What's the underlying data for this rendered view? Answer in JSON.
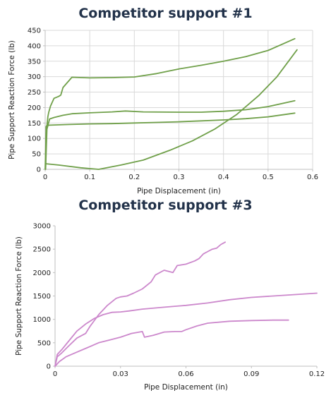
{
  "chart_data": [
    {
      "type": "line",
      "title": "Competitor support #1",
      "xlabel": "Pipe Displacement (in)",
      "ylabel": "Pipe Support Reaction Force (lb)",
      "xlim": [
        0,
        0.6
      ],
      "ylim": [
        0,
        450
      ],
      "xticks": [
        "0",
        "0.1",
        "0.2",
        "0.3",
        "0.4",
        "0.5",
        "0.6"
      ],
      "yticks": [
        "0",
        "50",
        "100",
        "150",
        "200",
        "250",
        "300",
        "350",
        "400",
        "450"
      ],
      "grid": true,
      "color": "#70a04a",
      "series": [
        {
          "x": [
            0,
            0.002,
            0.004,
            0.006,
            0.008,
            0.012,
            0.02,
            0.03,
            0.035,
            0.04,
            0.06,
            0.1,
            0.15,
            0.2,
            0.25,
            0.3,
            0.35,
            0.4,
            0.45,
            0.5,
            0.56
          ],
          "y": [
            0,
            120,
            140,
            170,
            185,
            205,
            230,
            236,
            240,
            265,
            298,
            296,
            297,
            299,
            310,
            325,
            337,
            350,
            365,
            385,
            423
          ]
        },
        {
          "x": [
            0.001,
            0.004,
            0.01,
            0.02,
            0.04,
            0.06,
            0.1,
            0.15,
            0.18,
            0.22,
            0.3,
            0.35,
            0.4,
            0.45,
            0.5,
            0.56
          ],
          "y": [
            0,
            130,
            163,
            168,
            175,
            180,
            183,
            186,
            189,
            186,
            185,
            185,
            188,
            193,
            203,
            222
          ]
        },
        {
          "x": [
            0.001,
            0.002,
            0.004,
            0.01,
            0.05,
            0.1,
            0.15,
            0.2,
            0.25,
            0.3,
            0.35,
            0.4,
            0.45,
            0.5,
            0.56
          ],
          "y": [
            0,
            138,
            142,
            143,
            145,
            147,
            148,
            150,
            152,
            154,
            157,
            160,
            164,
            170,
            182
          ]
        },
        {
          "x": [
            0.002,
            0.03,
            0.08,
            0.12,
            0.17,
            0.22,
            0.28,
            0.33,
            0.38,
            0.43,
            0.48,
            0.52,
            0.565
          ],
          "y": [
            18,
            14,
            5,
            0,
            14,
            30,
            62,
            92,
            130,
            178,
            240,
            300,
            387
          ]
        }
      ]
    },
    {
      "type": "line",
      "title": "Competitor support #3",
      "xlabel": "Pipe Displacement (in)",
      "ylabel": "Pipe Support Reaction Force (lb)",
      "xlim": [
        0,
        0.12
      ],
      "ylim": [
        0,
        3000
      ],
      "xticks": [
        "0",
        "0.03",
        "0.06",
        "0.09",
        "0.12"
      ],
      "yticks": [
        "0",
        "500",
        "1000",
        "1500",
        "2000",
        "2500",
        "3000"
      ],
      "grid": false,
      "color": "#cc88cc",
      "series": [
        {
          "x": [
            0,
            0.001,
            0.003,
            0.006,
            0.01,
            0.014,
            0.016,
            0.02,
            0.024,
            0.028,
            0.03,
            0.033,
            0.036,
            0.04,
            0.044,
            0.046,
            0.05,
            0.054,
            0.056,
            0.06,
            0.064,
            0.066,
            0.068,
            0.07,
            0.072,
            0.074,
            0.076,
            0.078
          ],
          "y": [
            0,
            200,
            280,
            420,
            600,
            700,
            850,
            1100,
            1300,
            1450,
            1480,
            1500,
            1560,
            1650,
            1800,
            1950,
            2050,
            2000,
            2150,
            2180,
            2250,
            2300,
            2400,
            2450,
            2500,
            2520,
            2600,
            2650
          ]
        },
        {
          "x": [
            0,
            0.001,
            0.003,
            0.006,
            0.01,
            0.014,
            0.018,
            0.022,
            0.026,
            0.03,
            0.034,
            0.04,
            0.05,
            0.06,
            0.07,
            0.08,
            0.09,
            0.1,
            0.11,
            0.12
          ],
          "y": [
            0,
            250,
            350,
            520,
            750,
            900,
            1020,
            1100,
            1150,
            1160,
            1180,
            1220,
            1260,
            1300,
            1350,
            1420,
            1470,
            1500,
            1530,
            1560
          ]
        },
        {
          "x": [
            0,
            0.002,
            0.005,
            0.01,
            0.015,
            0.02,
            0.025,
            0.03,
            0.035,
            0.04,
            0.041,
            0.045,
            0.05,
            0.055,
            0.058,
            0.06,
            0.065,
            0.07,
            0.08,
            0.09,
            0.1,
            0.107
          ],
          "y": [
            0,
            100,
            200,
            300,
            400,
            500,
            560,
            620,
            700,
            740,
            620,
            660,
            730,
            740,
            740,
            780,
            860,
            920,
            960,
            975,
            985,
            985
          ]
        }
      ]
    }
  ]
}
